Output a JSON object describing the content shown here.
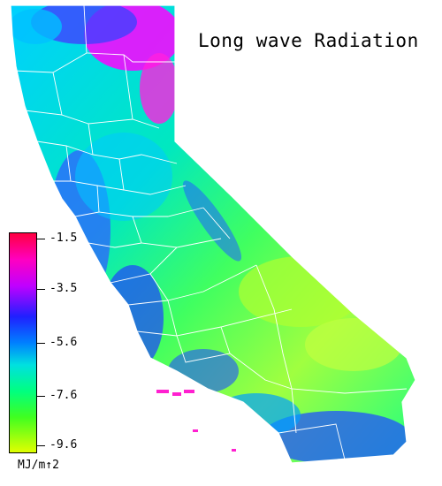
{
  "title": "Long wave Radiation",
  "legend": {
    "ticks": [
      "-1.5",
      "-3.5",
      "-5.6",
      "-7.6",
      "-9.6"
    ],
    "unit": "MJ/m↑2"
  },
  "colors": {
    "max": "#ff0040",
    "high": "#ff00c0",
    "mid_high": "#2020ff",
    "mid": "#00e0e0",
    "mid_low": "#00ff80",
    "low": "#e0ff00"
  }
}
